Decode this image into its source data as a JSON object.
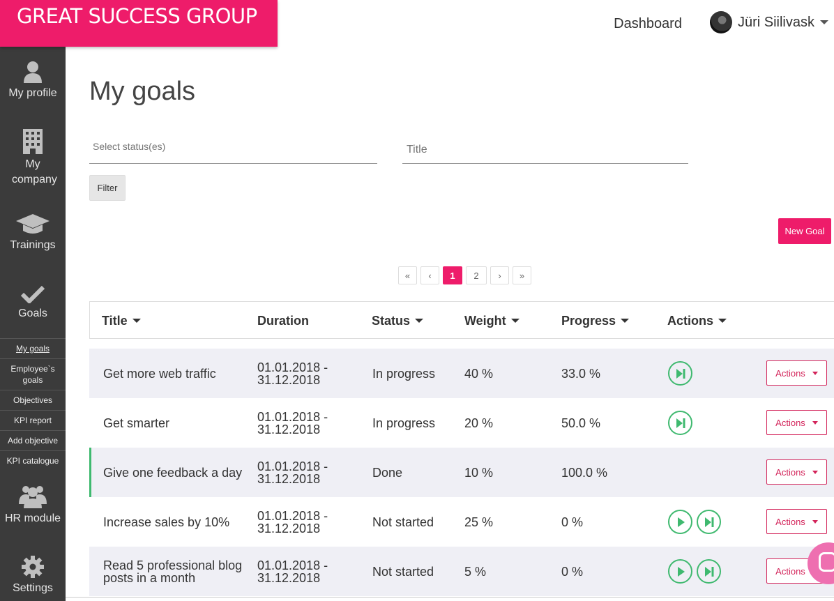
{
  "brand": "GREAT SUCCESS GROUP",
  "topnav": {
    "dashboard": "Dashboard",
    "user_name": "Jüri Siilivask"
  },
  "sidebar": {
    "items": [
      {
        "label": "My profile",
        "icon": "user-icon"
      },
      {
        "label": "My company",
        "icon": "building-icon"
      },
      {
        "label": "Trainings",
        "icon": "graduation-cap-icon"
      },
      {
        "label": "Goals",
        "icon": "checkmark-icon"
      },
      {
        "label": "HR module",
        "icon": "users-icon"
      },
      {
        "label": "Settings",
        "icon": "gear-icon"
      }
    ],
    "subitems": [
      "My goals",
      "Employee`s goals",
      "Objectives",
      "KPI report",
      "Add objective",
      "KPI catalogue"
    ]
  },
  "page": {
    "title": "My goals",
    "status_placeholder": "Select status(es)",
    "title_placeholder": "Title",
    "filter_label": "Filter",
    "new_goal_label": "New Goal"
  },
  "pagination": {
    "first": "«",
    "prev": "‹",
    "pages": [
      "1",
      "2"
    ],
    "next": "›",
    "last": "»",
    "current": "1"
  },
  "table": {
    "headers": {
      "title": "Title",
      "duration": "Duration",
      "status": "Status",
      "weight": "Weight",
      "progress": "Progress",
      "actions": "Actions"
    },
    "rows": [
      {
        "title": "Get more web traffic",
        "duration": "01.01.2018 - 31.12.2018",
        "status": "In progress",
        "weight": "40 %",
        "progress": "33.0 %",
        "actions": "Actions"
      },
      {
        "title": "Get smarter",
        "duration": "01.01.2018 - 31.12.2018",
        "status": "In progress",
        "weight": "20 %",
        "progress": "50.0 %",
        "actions": "Actions"
      },
      {
        "title": "Give one feedback a day",
        "duration": "01.01.2018 - 31.12.2018",
        "status": "Done",
        "weight": "10 %",
        "progress": "100.0 %",
        "actions": "Actions"
      },
      {
        "title": "Increase sales by 10%",
        "duration": "01.01.2018 - 31.12.2018",
        "status": "Not started",
        "weight": "25 %",
        "progress": "0 %",
        "actions": "Actions"
      },
      {
        "title": "Read 5 professional blog posts in a month",
        "duration": "01.01.2018 - 31.12.2018",
        "status": "Not started",
        "weight": "5 %",
        "progress": "0 %",
        "actions": "Actions"
      }
    ]
  },
  "colors": {
    "brand": "#ee1c6a",
    "sidebar": "#3b3b3b",
    "success": "#3fb96f",
    "action": "#d3245a"
  }
}
